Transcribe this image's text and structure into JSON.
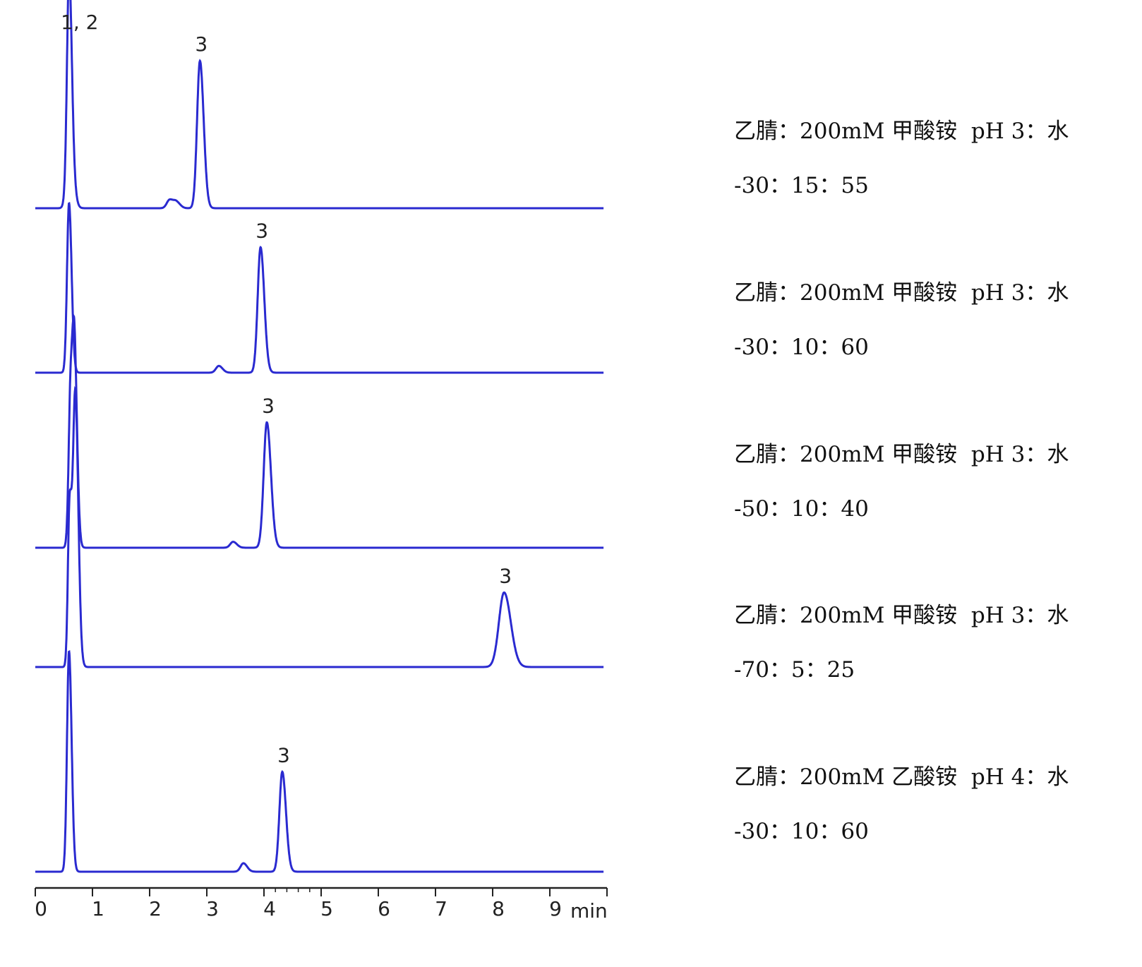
{
  "chart_data": {
    "type": "line",
    "title": "",
    "xlabel": "",
    "x_unit_label": "min",
    "ylabel": "",
    "xlim": [
      0,
      10
    ],
    "x_ticks": [
      "0",
      "1",
      "2",
      "3",
      "4",
      "5",
      "6",
      "7",
      "8",
      "9"
    ],
    "grid": false,
    "line_color": "#2a2ad0",
    "series": [
      {
        "condition_line1": "乙腈：200mM 甲酸铵  pH 3：水",
        "condition_line2": "-30：15：55",
        "peaks": [
          {
            "t": 0.59,
            "h": 1.0,
            "w": 0.035,
            "label": "1, 2"
          },
          {
            "t": 0.6,
            "h": 0.4,
            "w": 0.05
          },
          {
            "t": 2.35,
            "h": 0.05,
            "w": 0.05
          },
          {
            "t": 2.47,
            "h": 0.035,
            "w": 0.05
          },
          {
            "t": 2.88,
            "h": 0.87,
            "w": 0.05,
            "label": "3"
          }
        ]
      },
      {
        "condition_line1": "乙腈：200mM 甲酸铵  pH 3：水",
        "condition_line2": "-30：10：60",
        "peaks": [
          {
            "t": 0.59,
            "h": 1.0,
            "w": 0.035
          },
          {
            "t": 3.21,
            "h": 0.04,
            "w": 0.05
          },
          {
            "t": 3.94,
            "h": 0.74,
            "w": 0.05,
            "label": "3"
          }
        ]
      },
      {
        "condition_line1": "乙腈：200mM 甲酸铵  pH 3：水",
        "condition_line2": "-50：10：40",
        "peaks": [
          {
            "t": 0.62,
            "h": 0.96,
            "w": 0.035
          },
          {
            "t": 0.69,
            "h": 0.99,
            "w": 0.035
          },
          {
            "t": 3.46,
            "h": 0.035,
            "w": 0.05
          },
          {
            "t": 4.05,
            "h": 0.74,
            "w": 0.055,
            "label": "3"
          }
        ]
      },
      {
        "condition_line1": "乙腈：200mM 甲酸铵  pH 3：水",
        "condition_line2": "-70：5：25",
        "peaks": [
          {
            "t": 0.6,
            "h": 0.95,
            "w": 0.03
          },
          {
            "t": 0.7,
            "h": 1.6,
            "w": 0.04
          },
          {
            "t": 8.2,
            "h": 0.44,
            "w": 0.09,
            "label": "3"
          }
        ]
      },
      {
        "condition_line1": "乙腈：200mM 乙酸铵  pH 4：水",
        "condition_line2": "-30：10：60",
        "peaks": [
          {
            "t": 0.59,
            "h": 1.3,
            "w": 0.035
          },
          {
            "t": 3.64,
            "h": 0.05,
            "w": 0.05
          },
          {
            "t": 4.32,
            "h": 0.59,
            "w": 0.05,
            "label": "3"
          }
        ]
      }
    ]
  }
}
